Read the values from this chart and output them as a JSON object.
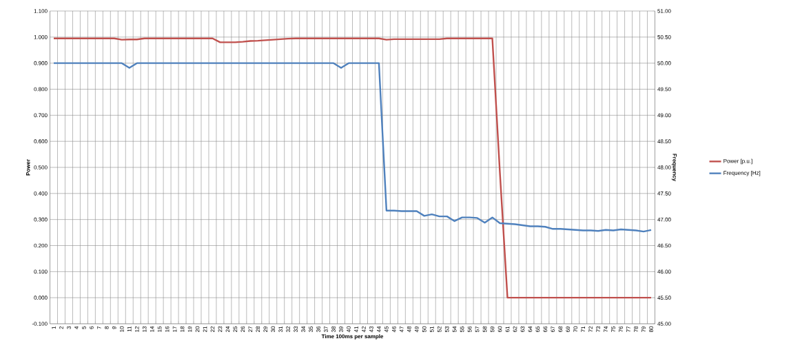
{
  "chart_data": {
    "type": "line",
    "xlabel": "Time 100ms per sample",
    "ylabel": "Power",
    "y2label": "Frequency",
    "categories": [
      "1",
      "2",
      "3",
      "4",
      "5",
      "6",
      "7",
      "8",
      "9",
      "10",
      "11",
      "12",
      "13",
      "14",
      "15",
      "16",
      "17",
      "18",
      "19",
      "20",
      "21",
      "22",
      "23",
      "24",
      "25",
      "26",
      "27",
      "28",
      "29",
      "30",
      "31",
      "32",
      "33",
      "34",
      "35",
      "36",
      "37",
      "38",
      "39",
      "40",
      "41",
      "42",
      "43",
      "44",
      "45",
      "46",
      "47",
      "48",
      "49",
      "50",
      "51",
      "52",
      "53",
      "54",
      "55",
      "56",
      "57",
      "58",
      "59",
      "60",
      "61",
      "62",
      "63",
      "64",
      "65",
      "66",
      "67",
      "68",
      "69",
      "70",
      "71",
      "72",
      "73",
      "74",
      "75",
      "76",
      "77",
      "78",
      "79",
      "80"
    ],
    "series": [
      {
        "name": "Power [p.u.]",
        "color": "#c0504d",
        "values": [
          0.995,
          0.995,
          0.995,
          0.995,
          0.995,
          0.995,
          0.995,
          0.995,
          0.995,
          0.99,
          0.991,
          0.991,
          0.995,
          0.995,
          0.995,
          0.995,
          0.995,
          0.995,
          0.995,
          0.995,
          0.995,
          0.995,
          0.98,
          0.98,
          0.98,
          0.982,
          0.985,
          0.986,
          0.988,
          0.99,
          0.992,
          0.994,
          0.995,
          0.995,
          0.995,
          0.995,
          0.995,
          0.995,
          0.995,
          0.995,
          0.995,
          0.995,
          0.995,
          0.995,
          0.99,
          0.992,
          0.992,
          0.992,
          0.992,
          0.992,
          0.992,
          0.992,
          0.995,
          0.995,
          0.995,
          0.995,
          0.995,
          0.995,
          0.995,
          0.48,
          0,
          0,
          0,
          0,
          0,
          0,
          0,
          0,
          0,
          0,
          0,
          0,
          0,
          0,
          0,
          0,
          0,
          0,
          0,
          0
        ]
      },
      {
        "name": "Frequency [Hz]",
        "color": "#4f81bd",
        "axis": "y2",
        "values": [
          50.0,
          50.0,
          50.0,
          50.0,
          50.0,
          50.0,
          50.0,
          50.0,
          50.0,
          50.0,
          49.91,
          50.0,
          50.0,
          50.0,
          50.0,
          50.0,
          50.0,
          50.0,
          50.0,
          50.0,
          50.0,
          50.0,
          50.0,
          50.0,
          50.0,
          50.0,
          50.0,
          50.0,
          50.0,
          50.0,
          50.0,
          50.0,
          50.0,
          50.0,
          50.0,
          50.0,
          50.0,
          50.0,
          49.91,
          50.0,
          50.0,
          50.0,
          50.0,
          50.0,
          47.17,
          47.17,
          47.16,
          47.16,
          47.16,
          47.07,
          47.1,
          47.06,
          47.06,
          46.97,
          47.04,
          47.04,
          47.03,
          46.94,
          47.04,
          46.93,
          46.92,
          46.91,
          46.89,
          46.87,
          46.87,
          46.86,
          46.82,
          46.82,
          46.81,
          46.8,
          46.79,
          46.79,
          46.78,
          46.8,
          46.79,
          46.81,
          46.8,
          46.79,
          46.77,
          46.8
        ]
      }
    ],
    "ylim": [
      -0.1,
      1.1
    ],
    "yticks": [
      {
        "value": -0.1,
        "label": "-0.100"
      },
      {
        "value": 0,
        "label": "0.000"
      },
      {
        "value": 0.1,
        "label": "0.100"
      },
      {
        "value": 0.2,
        "label": "0.200"
      },
      {
        "value": 0.3,
        "label": "0.300"
      },
      {
        "value": 0.4,
        "label": "0.400"
      },
      {
        "value": 0.5,
        "label": "0.500"
      },
      {
        "value": 0.6,
        "label": "0.600"
      },
      {
        "value": 0.7,
        "label": "0.700"
      },
      {
        "value": 0.8,
        "label": "0.800"
      },
      {
        "value": 0.9,
        "label": "0.900"
      },
      {
        "value": 1.0,
        "label": "1.000"
      },
      {
        "value": 1.1,
        "label": "1.100"
      }
    ],
    "y2lim": [
      45,
      51
    ],
    "y2ticks": [
      {
        "value": 45,
        "label": "45.00"
      },
      {
        "value": 45.5,
        "label": "45.50"
      },
      {
        "value": 46,
        "label": "46.00"
      },
      {
        "value": 46.5,
        "label": "46.50"
      },
      {
        "value": 47,
        "label": "47.00"
      },
      {
        "value": 47.5,
        "label": "47.50"
      },
      {
        "value": 48,
        "label": "48.00"
      },
      {
        "value": 48.5,
        "label": "48.50"
      },
      {
        "value": 49,
        "label": "49.00"
      },
      {
        "value": 49.5,
        "label": "49.50"
      },
      {
        "value": 50,
        "label": "50.00"
      },
      {
        "value": 50.5,
        "label": "50.50"
      },
      {
        "value": 51,
        "label": "51.00"
      }
    ],
    "grid": true,
    "legend": "right"
  }
}
